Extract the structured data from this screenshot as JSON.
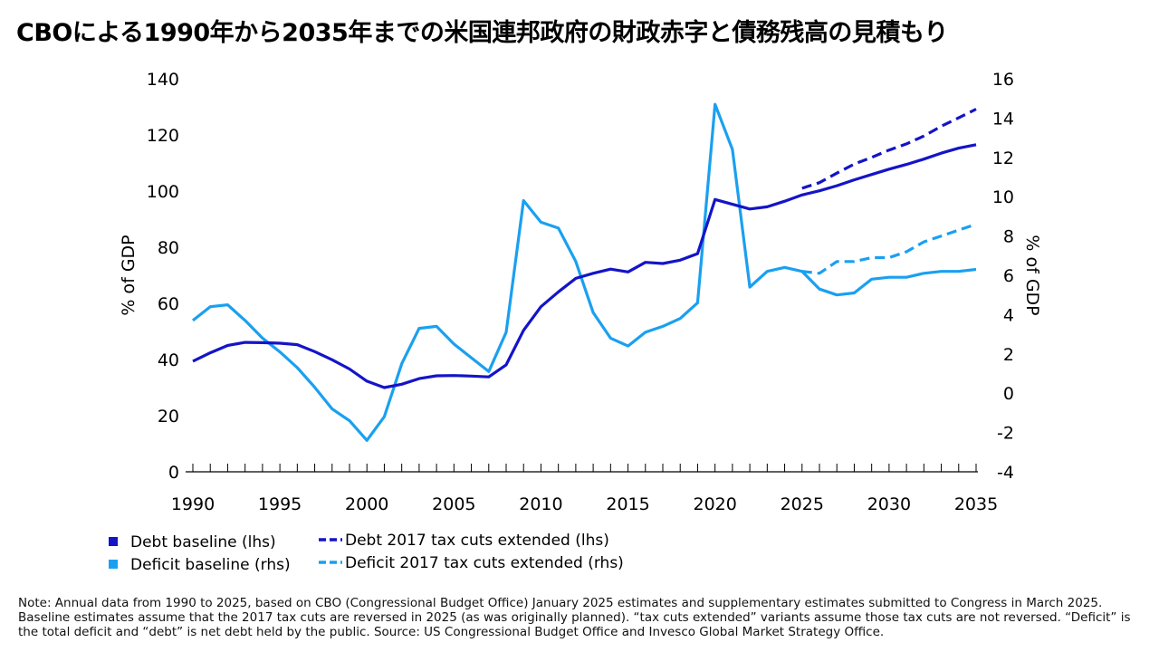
{
  "title": "CBOによる1990年から2035年までの米国連邦政府の財政赤字と債務残高の見積もり",
  "note": "Note: Annual data from 1990 to 2025, based on CBO (Congressional Budget Office) January 2025 estimates and supplementary estimates submitted to Congress in March 2025. Baseline estimates assume that the 2017 tax cuts are reversed in 2025 (as was originally planned). “tax cuts extended” variants assume those tax cuts are not reversed. “Deficit” is the total deficit and “debt” is net debt held by the public. Source: US Congressional Budget Office and Invesco Global Market Strategy Office.",
  "colors": {
    "debt": "#1414c8",
    "deficit": "#1aa0f0",
    "axis": "#000000"
  },
  "chart_data": {
    "type": "line",
    "title": "CBOによる1990年から2035年までの米国連邦政府の財政赤字と債務残高の見積もり",
    "xlabel": "",
    "ylabel_left": "% of GDP",
    "ylabel_right": "% of GDP",
    "xlim": [
      1990,
      2035
    ],
    "ylim_left": [
      0,
      140
    ],
    "ylim_right": [
      -4,
      16
    ],
    "x_ticks": [
      "1990",
      "1995",
      "2000",
      "2005",
      "2010",
      "2015",
      "2020",
      "2025",
      "2030",
      "2035"
    ],
    "y_left_ticks": [
      "0",
      "20",
      "40",
      "60",
      "80",
      "100",
      "120",
      "140"
    ],
    "y_right_ticks": [
      "-4",
      "-2",
      "0",
      "2",
      "4",
      "6",
      "8",
      "10",
      "12",
      "14",
      "16"
    ],
    "grid": false,
    "legend_position": "bottom-left",
    "series": [
      {
        "name": "Debt baseline (lhs)",
        "axis": "left",
        "style": "solid",
        "x": [
          1990,
          1991,
          1992,
          1993,
          1994,
          1995,
          1996,
          1997,
          1998,
          1999,
          2000,
          2001,
          2002,
          2003,
          2004,
          2005,
          2006,
          2007,
          2008,
          2009,
          2010,
          2011,
          2012,
          2013,
          2014,
          2015,
          2016,
          2017,
          2018,
          2019,
          2020,
          2021,
          2022,
          2023,
          2024,
          2025,
          2026,
          2027,
          2028,
          2029,
          2030,
          2031,
          2032,
          2033,
          2034,
          2035
        ],
        "values": [
          39.4,
          42.4,
          45.0,
          46.1,
          46.0,
          45.8,
          45.3,
          42.8,
          39.9,
          36.6,
          32.3,
          30.0,
          31.2,
          33.2,
          34.2,
          34.3,
          34.1,
          33.8,
          38.1,
          50.4,
          58.8,
          64.1,
          68.9,
          70.7,
          72.2,
          71.2,
          74.6,
          74.2,
          75.4,
          77.7,
          97.0,
          95.3,
          93.6,
          94.4,
          96.4,
          98.6,
          100.1,
          101.9,
          104.0,
          105.9,
          107.8,
          109.5,
          111.4,
          113.5,
          115.3,
          116.5
        ]
      },
      {
        "name": "Debt 2017 tax cuts extended (lhs)",
        "axis": "left",
        "style": "dashed",
        "x": [
          2025,
          2026,
          2027,
          2028,
          2029,
          2030,
          2031,
          2032,
          2033,
          2034,
          2035
        ],
        "values": [
          101.0,
          103.0,
          106.4,
          109.6,
          112.0,
          114.6,
          116.8,
          119.6,
          123.1,
          126.1,
          129.2
        ]
      },
      {
        "name": "Deficit baseline (rhs)",
        "axis": "right",
        "style": "solid",
        "x": [
          1990,
          1991,
          1992,
          1993,
          1994,
          1995,
          1996,
          1997,
          1998,
          1999,
          2000,
          2001,
          2002,
          2003,
          2004,
          2005,
          2006,
          2007,
          2008,
          2009,
          2010,
          2011,
          2012,
          2013,
          2014,
          2015,
          2016,
          2017,
          2018,
          2019,
          2020,
          2021,
          2022,
          2023,
          2024,
          2025,
          2026,
          2027,
          2028,
          2029,
          2030,
          2031,
          2032,
          2033,
          2034,
          2035
        ],
        "values": [
          3.7,
          4.4,
          4.5,
          3.7,
          2.8,
          2.1,
          1.3,
          0.3,
          -0.8,
          -1.4,
          -2.4,
          -1.2,
          1.5,
          3.3,
          3.4,
          2.5,
          1.8,
          1.1,
          3.1,
          9.8,
          8.7,
          8.4,
          6.7,
          4.1,
          2.8,
          2.4,
          3.1,
          3.4,
          3.8,
          4.6,
          14.7,
          12.4,
          5.4,
          6.2,
          6.4,
          6.2,
          5.3,
          5.0,
          5.1,
          5.8,
          5.9,
          5.9,
          6.1,
          6.2,
          6.2,
          6.3
        ]
      },
      {
        "name": "Deficit 2017 tax cuts extended (rhs)",
        "axis": "right",
        "style": "dashed",
        "x": [
          2025,
          2026,
          2027,
          2028,
          2029,
          2030,
          2031,
          2032,
          2033,
          2034,
          2035
        ],
        "values": [
          6.2,
          6.1,
          6.7,
          6.7,
          6.9,
          6.9,
          7.2,
          7.7,
          8.0,
          8.3,
          8.6
        ]
      }
    ]
  }
}
